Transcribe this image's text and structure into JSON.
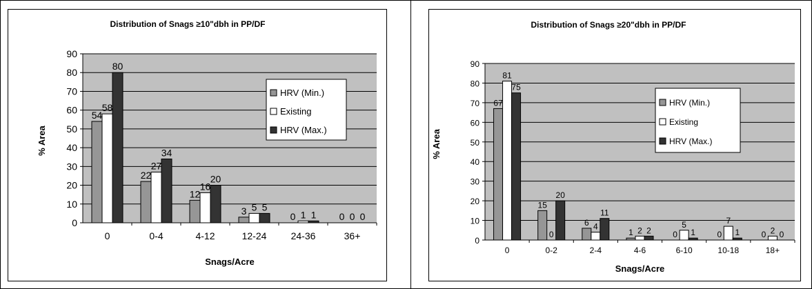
{
  "colors": {
    "plot_bg": "#c0c0c0",
    "hrv_min": "#969696",
    "existing": "#ffffff",
    "hrv_max": "#333333",
    "grid": "#000000"
  },
  "chart_data": [
    {
      "type": "bar",
      "title": "Distribution of Snags ≥10\"dbh in PP/DF",
      "xlabel": "Snags/Acre",
      "ylabel": "% Area",
      "ylim": [
        0,
        90
      ],
      "yticks": [
        0,
        10,
        20,
        30,
        40,
        50,
        60,
        70,
        80,
        90
      ],
      "categories": [
        "0",
        "0-4",
        "4-12",
        "12-24",
        "24-36",
        "36+"
      ],
      "series": [
        {
          "name": "HRV  (Min.)",
          "values": [
            54,
            22,
            12,
            3,
            0,
            0
          ]
        },
        {
          "name": "Existing",
          "values": [
            58,
            27,
            16,
            5,
            1,
            0
          ]
        },
        {
          "name": "HRV  (Max.)",
          "values": [
            80,
            34,
            20,
            5,
            1,
            0
          ]
        }
      ],
      "grid": true,
      "legend": "right"
    },
    {
      "type": "bar",
      "title": "Distribution of Snags ≥20\"dbh in PP/DF",
      "xlabel": "Snags/Acre",
      "ylabel": "% Area",
      "ylim": [
        0,
        90
      ],
      "yticks": [
        0,
        10,
        20,
        30,
        40,
        50,
        60,
        70,
        80,
        90
      ],
      "categories": [
        "0",
        "0-2",
        "2-4",
        "4-6",
        "6-10",
        "10-18",
        "18+"
      ],
      "series": [
        {
          "name": "HRV  (Min.)",
          "values": [
            67,
            15,
            6,
            1,
            0,
            0,
            0
          ]
        },
        {
          "name": "Existing",
          "values": [
            81,
            0,
            4,
            2,
            5,
            7,
            2
          ]
        },
        {
          "name": "HRV  (Max.)",
          "values": [
            75,
            20,
            11,
            2,
            1,
            1,
            0
          ]
        }
      ],
      "grid": true,
      "legend": "right"
    }
  ]
}
